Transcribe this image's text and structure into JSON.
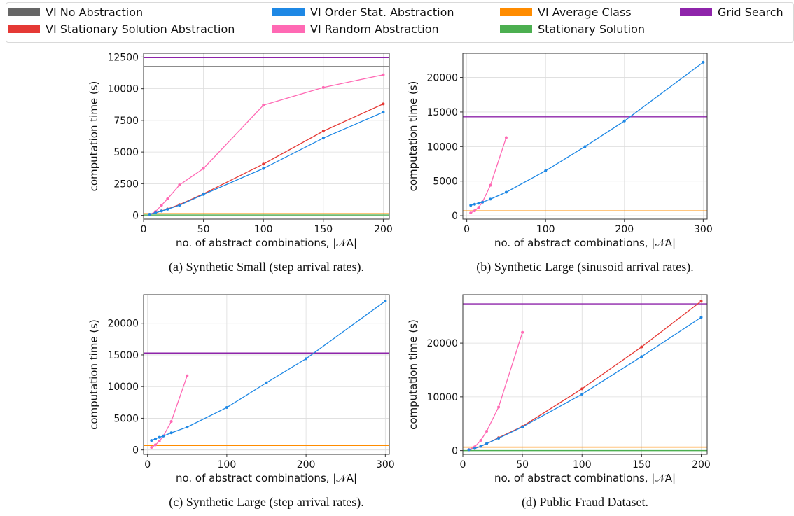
{
  "legend": [
    {
      "label": "VI No Abstraction",
      "color": "#666666"
    },
    {
      "label": "VI Stationary Solution Abstraction",
      "color": "#e53935"
    },
    {
      "label": "VI Order Stat. Abstraction",
      "color": "#1e88e5"
    },
    {
      "label": "VI Random Abstraction",
      "color": "#ff69b4"
    },
    {
      "label": "VI Average Class",
      "color": "#ff8c00"
    },
    {
      "label": "Stationary Solution",
      "color": "#4caf50"
    },
    {
      "label": "Grid Search",
      "color": "#8e24aa"
    }
  ],
  "chart_data": [
    {
      "type": "line",
      "caption": "(a) Synthetic Small (step arrival rates).",
      "xlabel": "no. of abstract combinations, |𝒩A|",
      "ylabel": "computation time (s)",
      "xlim": [
        0,
        205
      ],
      "ylim": [
        -300,
        12800
      ],
      "xticks": [
        0,
        50,
        100,
        150,
        200
      ],
      "yticks": [
        0,
        2500,
        5000,
        7500,
        10000,
        12500
      ],
      "grid": true,
      "hlines": [
        {
          "name": "Grid Search",
          "y": 12450
        },
        {
          "name": "VI No Abstraction",
          "y": 11750
        },
        {
          "name": "VI Average Class",
          "y": 130
        },
        {
          "name": "Stationary Solution",
          "y": 30
        }
      ],
      "series": [
        {
          "name": "VI Random Abstraction",
          "x": [
            5,
            10,
            15,
            20,
            30,
            50,
            100,
            150,
            200
          ],
          "y": [
            50,
            300,
            800,
            1300,
            2400,
            3700,
            8700,
            10100,
            11100
          ]
        },
        {
          "name": "VI Stationary Solution Abstraction",
          "x": [
            5,
            10,
            15,
            20,
            30,
            50,
            100,
            150,
            200
          ],
          "y": [
            80,
            200,
            350,
            500,
            850,
            1700,
            4050,
            6650,
            8800
          ]
        },
        {
          "name": "VI Order Stat. Abstraction",
          "x": [
            5,
            10,
            15,
            20,
            30,
            50,
            100,
            150,
            200
          ],
          "y": [
            80,
            200,
            340,
            480,
            800,
            1650,
            3700,
            6100,
            8150
          ]
        }
      ]
    },
    {
      "type": "line",
      "caption": "(b) Synthetic Large (sinusoid arrival rates).",
      "xlabel": "no. of abstract combinations, |𝒩A|",
      "ylabel": "computation time (s)",
      "xlim": [
        -5,
        305
      ],
      "ylim": [
        -500,
        23500
      ],
      "xticks": [
        0,
        100,
        200,
        300
      ],
      "yticks": [
        0,
        5000,
        10000,
        15000,
        20000
      ],
      "grid": true,
      "hlines": [
        {
          "name": "Grid Search",
          "y": 14300
        },
        {
          "name": "VI Average Class",
          "y": 700
        }
      ],
      "series": [
        {
          "name": "VI Random Abstraction",
          "x": [
            5,
            10,
            15,
            20,
            30,
            50
          ],
          "y": [
            400,
            700,
            1200,
            2000,
            4400,
            11300
          ]
        },
        {
          "name": "VI Order Stat. Abstraction",
          "x": [
            5,
            10,
            15,
            20,
            30,
            50,
            100,
            150,
            200,
            300
          ],
          "y": [
            1500,
            1650,
            1800,
            1950,
            2400,
            3400,
            6500,
            10000,
            13700,
            22200
          ]
        }
      ]
    },
    {
      "type": "line",
      "caption": "(c) Synthetic Large (step arrival rates).",
      "xlabel": "no. of abstract combinations, |𝒩A|",
      "ylabel": "computation time (s)",
      "xlim": [
        -5,
        305
      ],
      "ylim": [
        -700,
        24500
      ],
      "xticks": [
        0,
        100,
        200,
        300
      ],
      "yticks": [
        0,
        5000,
        10000,
        15000,
        20000
      ],
      "grid": true,
      "hlines": [
        {
          "name": "Grid Search",
          "y": 15300
        },
        {
          "name": "VI Average Class",
          "y": 700
        }
      ],
      "series": [
        {
          "name": "VI Random Abstraction",
          "x": [
            5,
            10,
            15,
            20,
            30,
            50
          ],
          "y": [
            400,
            800,
            1400,
            2200,
            4500,
            11700
          ]
        },
        {
          "name": "VI Order Stat. Abstraction",
          "x": [
            5,
            10,
            15,
            20,
            30,
            50,
            100,
            150,
            200,
            300
          ],
          "y": [
            1500,
            1750,
            2000,
            2200,
            2700,
            3600,
            6700,
            10600,
            14400,
            23500
          ]
        }
      ]
    },
    {
      "type": "line",
      "caption": "(d) Public Fraud Dataset.",
      "xlabel": "no. of abstract combinations, |𝒩A|",
      "ylabel": "computation time (s)",
      "xlim": [
        0,
        205
      ],
      "ylim": [
        -700,
        29000
      ],
      "xticks": [
        0,
        50,
        100,
        150,
        200
      ],
      "yticks": [
        0,
        10000,
        20000
      ],
      "grid": true,
      "hlines": [
        {
          "name": "Grid Search",
          "y": 27300
        },
        {
          "name": "VI Average Class",
          "y": 650
        },
        {
          "name": "Stationary Solution",
          "y": 0
        }
      ],
      "series": [
        {
          "name": "VI Random Abstraction",
          "x": [
            5,
            10,
            15,
            20,
            30,
            50
          ],
          "y": [
            200,
            700,
            1900,
            3600,
            8100,
            22000
          ]
        },
        {
          "name": "VI Stationary Solution Abstraction",
          "x": [
            5,
            10,
            15,
            20,
            30,
            50,
            100,
            150,
            200
          ],
          "y": [
            150,
            400,
            800,
            1300,
            2400,
            4500,
            11500,
            19300,
            27800
          ]
        },
        {
          "name": "VI Order Stat. Abstraction",
          "x": [
            5,
            10,
            15,
            20,
            30,
            50,
            100,
            150,
            200
          ],
          "y": [
            150,
            400,
            800,
            1300,
            2300,
            4400,
            10500,
            17500,
            24800
          ]
        }
      ]
    }
  ]
}
